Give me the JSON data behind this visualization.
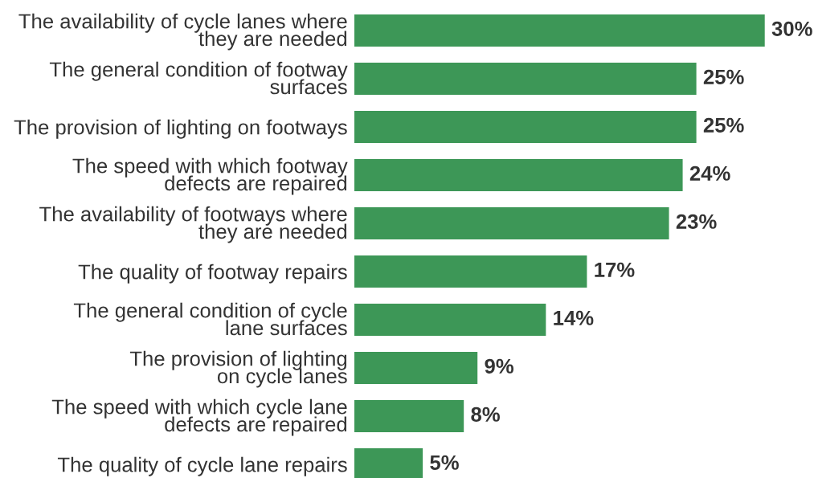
{
  "chart_data": {
    "type": "bar",
    "orientation": "horizontal",
    "categories": [
      "The availability of cycle lanes where\nthey are needed",
      "The general condition of footway\nsurfaces",
      "The provision of lighting on footways",
      "The speed with which footway\ndefects are repaired",
      "The availability of footways where\nthey are needed",
      "The quality of footway repairs",
      "The general condition of cycle\nlane surfaces",
      "The provision of lighting\non cycle lanes",
      "The speed with which cycle lane\ndefects are repaired",
      "The quality of cycle lane repairs"
    ],
    "values": [
      30,
      25,
      25,
      24,
      23,
      17,
      14,
      9,
      8,
      5
    ],
    "value_labels": [
      "30%",
      "25%",
      "25%",
      "24%",
      "23%",
      "17%",
      "14%",
      "9%",
      "8%",
      "5%"
    ],
    "color": "#3d9757",
    "grid": false,
    "tick_labels": "y"
  }
}
